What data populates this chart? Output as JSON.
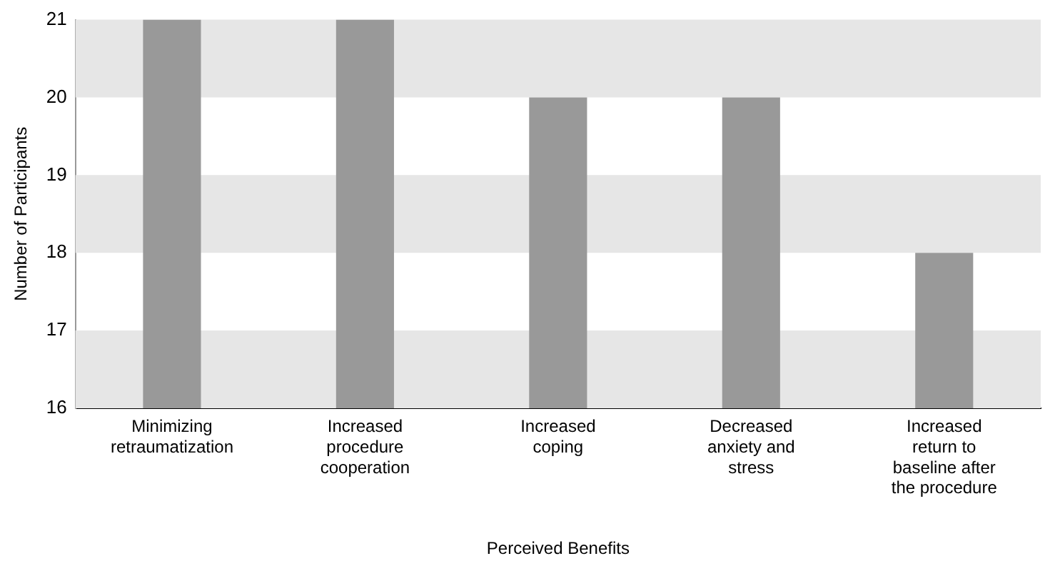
{
  "chart_data": {
    "type": "bar",
    "xlabel": "Perceived Benefits",
    "ylabel": "Number of Participants",
    "categories": [
      "Minimizing retraumatization",
      "Increased procedure cooperation",
      "Increased coping",
      "Decreased anxiety and stress",
      "Increased return to baseline after the procedure"
    ],
    "values": [
      21,
      21,
      20,
      20,
      18
    ],
    "color": "#999999",
    "ylim": [
      16,
      21
    ],
    "yticks": [
      16,
      17,
      18,
      19,
      20,
      21
    ],
    "grid": false,
    "bands": [
      {
        "axis": "y",
        "from": 16,
        "to": 17,
        "color": "#e6e6e6"
      },
      {
        "axis": "y",
        "from": 18,
        "to": 19,
        "color": "#e6e6e6"
      },
      {
        "axis": "y",
        "from": 20,
        "to": 21,
        "color": "#e6e6e6"
      }
    ]
  }
}
